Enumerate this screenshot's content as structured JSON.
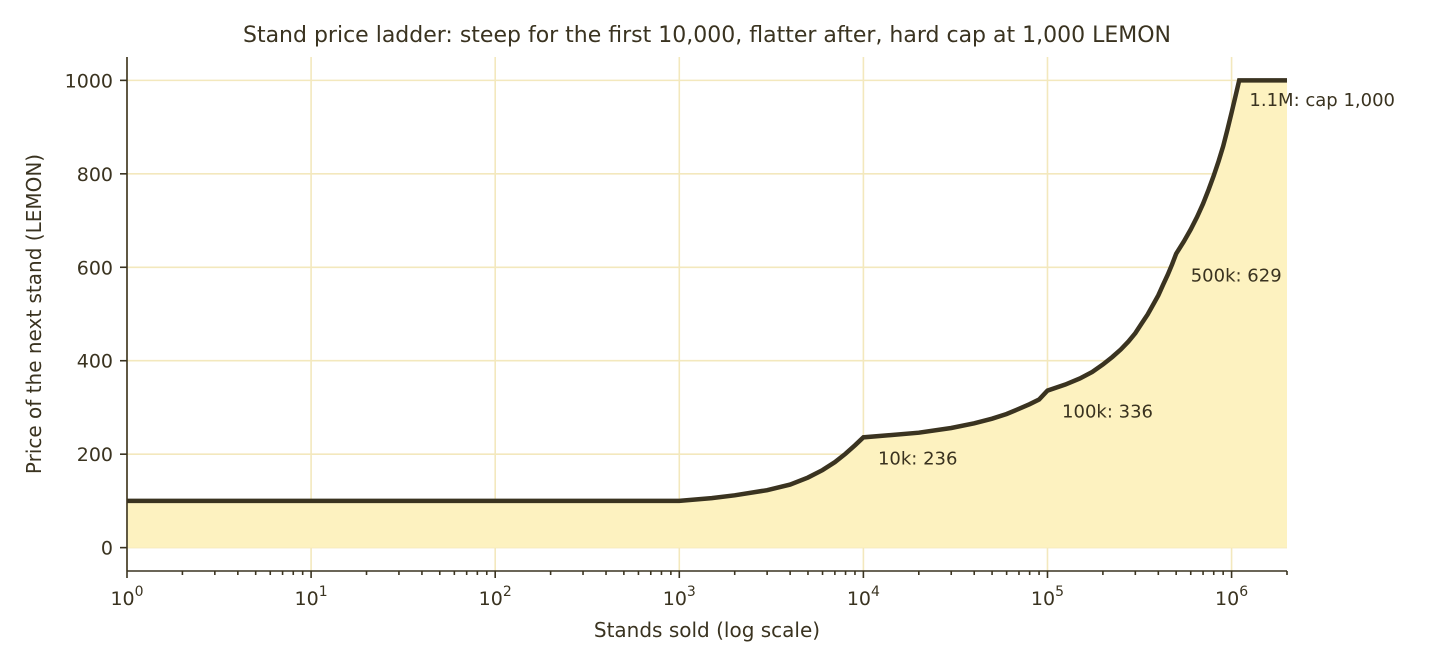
{
  "chart_data": {
    "type": "area",
    "title": "Stand price ladder: steep for the first 10,000, flatter after, hard cap at 1,000 LEMON",
    "xlabel": "Stands sold (log scale)",
    "ylabel": "Price of the next stand (LEMON)",
    "x_scale": "log",
    "xlim": [
      1,
      2000000
    ],
    "ylim": [
      -50,
      1050
    ],
    "grid": true,
    "x_ticks": [
      {
        "value": 1,
        "base": "10",
        "exp": "0"
      },
      {
        "value": 10,
        "base": "10",
        "exp": "1"
      },
      {
        "value": 100,
        "base": "10",
        "exp": "2"
      },
      {
        "value": 1000,
        "base": "10",
        "exp": "3"
      },
      {
        "value": 10000,
        "base": "10",
        "exp": "4"
      },
      {
        "value": 100000,
        "base": "10",
        "exp": "5"
      },
      {
        "value": 1000000,
        "base": "10",
        "exp": "6"
      }
    ],
    "y_ticks": [
      {
        "value": 0,
        "label": "0"
      },
      {
        "value": 200,
        "label": "200"
      },
      {
        "value": 400,
        "label": "400"
      },
      {
        "value": 600,
        "label": "600"
      },
      {
        "value": 800,
        "label": "800"
      },
      {
        "value": 1000,
        "label": "1000"
      }
    ],
    "series": [
      {
        "x": [
          1,
          1000,
          1500,
          2000,
          3000,
          4000,
          5000,
          6000,
          7000,
          8000,
          9000,
          10000,
          20000,
          30000,
          40000,
          50000,
          60000,
          70000,
          80000,
          90000,
          100000,
          125000,
          150000,
          175000,
          200000,
          225000,
          250000,
          275000,
          300000,
          325000,
          350000,
          375000,
          400000,
          425000,
          450000,
          475000,
          500000,
          550000,
          600000,
          650000,
          700000,
          750000,
          800000,
          850000,
          900000,
          950000,
          1000000,
          1050000,
          1100000,
          2000000
        ],
        "y": [
          100,
          100,
          106,
          112,
          123,
          135,
          150,
          166,
          183,
          201,
          219,
          236,
          246,
          256,
          266,
          276,
          286,
          297,
          307,
          317,
          336,
          349,
          362,
          376,
          392,
          408,
          424,
          441,
          459,
          480,
          499,
          520,
          540,
          563,
          584,
          606,
          629,
          655,
          681,
          708,
          736,
          766,
          796,
          827,
          859,
          895,
          931,
          966,
          1000,
          1000
        ]
      }
    ],
    "annotations": [
      {
        "x": 12000,
        "y": 178,
        "text": "10k: 236"
      },
      {
        "x": 120000,
        "y": 278,
        "text": "100k: 336"
      },
      {
        "x": 600000,
        "y": 570,
        "text": "500k: 629"
      },
      {
        "x": 1250000,
        "y": 945,
        "text": "1.1M: cap 1,000"
      }
    ],
    "colors": {
      "line": "#3a3320",
      "fill": "#fdf2c0",
      "grid": "#f3e8bd",
      "text": "#3a3320"
    }
  }
}
